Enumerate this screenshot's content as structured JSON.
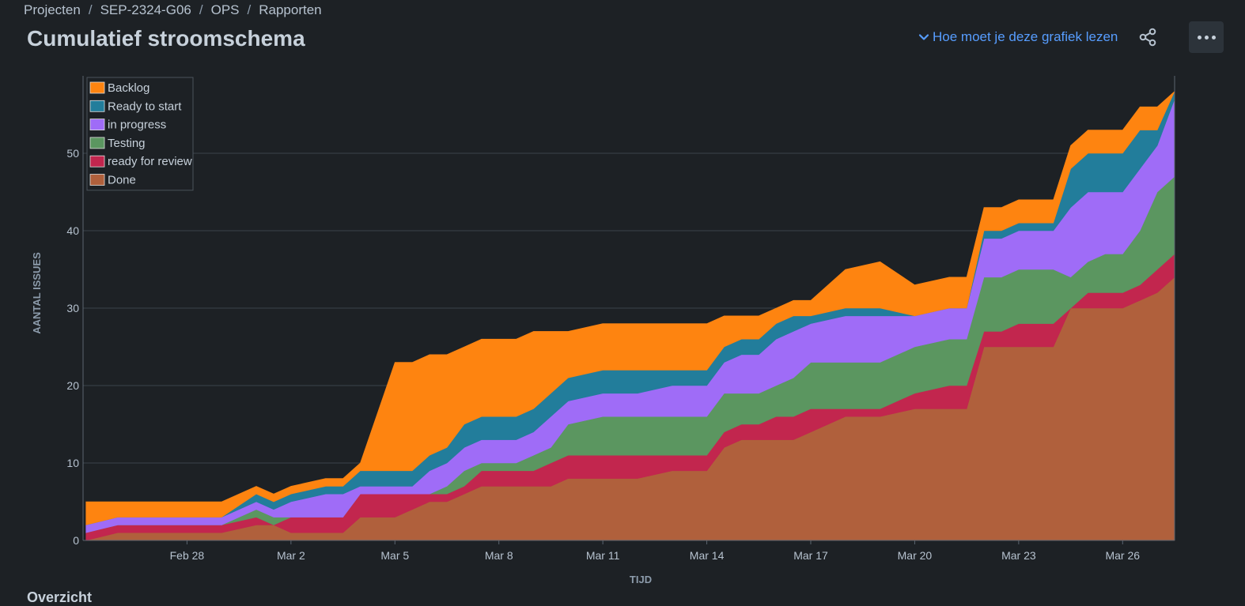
{
  "breadcrumb": [
    "Projecten",
    "SEP-2324-G06",
    "OPS",
    "Rapporten"
  ],
  "page_title": "Cumulatief stroomschema",
  "help_link": "Hoe moet je deze grafiek lezen",
  "section_title": "Overzicht",
  "icons": {
    "help": "chevron-down-icon",
    "share": "share-icon",
    "more": "more-icon"
  },
  "chart_data": {
    "type": "area",
    "stacked": true,
    "title": "",
    "xlabel": "TIJD",
    "ylabel": "AANTAL ISSUES",
    "ylim": [
      0,
      60
    ],
    "yticks": [
      0,
      10,
      20,
      30,
      40,
      50
    ],
    "xlim": [
      "2024-02-25",
      "2024-03-27T12:00"
    ],
    "xticks": [
      "2024-02-28",
      "2024-03-02",
      "2024-03-05",
      "2024-03-08",
      "2024-03-11",
      "2024-03-14",
      "2024-03-17",
      "2024-03-20",
      "2024-03-23",
      "2024-03-26"
    ],
    "xtick_labels": [
      "Feb 28",
      "Mar 2",
      "Mar 5",
      "Mar 8",
      "Mar 11",
      "Mar 14",
      "Mar 17",
      "Mar 20",
      "Mar 23",
      "Mar 26"
    ],
    "grid": true,
    "legend_position": "top-left",
    "x": [
      "2024-02-25T02:00",
      "2024-02-26T00:00",
      "2024-02-27T00:00",
      "2024-02-28T00:00",
      "2024-02-29T00:00",
      "2024-03-01T00:00",
      "2024-03-01T12:00",
      "2024-03-02T00:00",
      "2024-03-03T00:00",
      "2024-03-03T12:00",
      "2024-03-04T00:00",
      "2024-03-05T00:00",
      "2024-03-05T12:00",
      "2024-03-06T00:00",
      "2024-03-06T12:00",
      "2024-03-07T00:00",
      "2024-03-07T12:00",
      "2024-03-08T00:00",
      "2024-03-08T12:00",
      "2024-03-09T00:00",
      "2024-03-09T12:00",
      "2024-03-10T00:00",
      "2024-03-11T00:00",
      "2024-03-12T00:00",
      "2024-03-13T00:00",
      "2024-03-14T00:00",
      "2024-03-14T12:00",
      "2024-03-15T00:00",
      "2024-03-15T12:00",
      "2024-03-16T00:00",
      "2024-03-16T12:00",
      "2024-03-17T00:00",
      "2024-03-18T00:00",
      "2024-03-19T00:00",
      "2024-03-20T00:00",
      "2024-03-21T00:00",
      "2024-03-21T12:00",
      "2024-03-22T00:00",
      "2024-03-22T12:00",
      "2024-03-23T00:00",
      "2024-03-24T00:00",
      "2024-03-24T12:00",
      "2024-03-25T00:00",
      "2024-03-25T12:00",
      "2024-03-26T00:00",
      "2024-03-26T12:00",
      "2024-03-27T00:00",
      "2024-03-27T12:00"
    ],
    "series": [
      {
        "name": "Done",
        "color": "#b0603c",
        "values": [
          0,
          1,
          1,
          1,
          1,
          2,
          2,
          1,
          1,
          1,
          3,
          3,
          4,
          5,
          5,
          6,
          7,
          7,
          7,
          7,
          7,
          8,
          8,
          8,
          9,
          9,
          12,
          13,
          13,
          13,
          13,
          14,
          16,
          16,
          17,
          17,
          17,
          25,
          25,
          25,
          25,
          30,
          30,
          30,
          30,
          31,
          32,
          34
        ]
      },
      {
        "name": "ready for review",
        "color": "#c2264e",
        "values": [
          1,
          1,
          1,
          1,
          1,
          1,
          0,
          2,
          2,
          2,
          3,
          3,
          2,
          1,
          1,
          1,
          2,
          2,
          2,
          2,
          3,
          3,
          3,
          3,
          2,
          2,
          2,
          2,
          2,
          3,
          3,
          3,
          1,
          1,
          2,
          3,
          3,
          2,
          2,
          3,
          3,
          0,
          2,
          2,
          2,
          2,
          3,
          3
        ]
      },
      {
        "name": "Testing",
        "color": "#5b9660",
        "values": [
          0,
          0,
          0,
          0,
          0,
          1,
          1,
          0,
          0,
          0,
          0,
          0,
          0,
          0,
          1,
          2,
          1,
          1,
          1,
          2,
          2,
          4,
          5,
          5,
          5,
          5,
          5,
          4,
          4,
          4,
          5,
          6,
          6,
          6,
          6,
          6,
          6,
          7,
          7,
          7,
          7,
          4,
          4,
          5,
          5,
          7,
          10,
          10
        ]
      },
      {
        "name": "in progress",
        "color": "#9f6cf7",
        "values": [
          1,
          1,
          1,
          1,
          1,
          1,
          1,
          2,
          3,
          3,
          1,
          1,
          1,
          3,
          3,
          3,
          3,
          3,
          3,
          3,
          4,
          3,
          3,
          3,
          4,
          4,
          4,
          5,
          5,
          6,
          6,
          5,
          6,
          6,
          4,
          4,
          4,
          5,
          5,
          5,
          5,
          9,
          9,
          8,
          8,
          8,
          6,
          10
        ]
      },
      {
        "name": "Ready to start",
        "color": "#227d9b",
        "values": [
          0,
          0,
          0,
          0,
          0,
          1,
          1,
          1,
          1,
          1,
          2,
          2,
          2,
          2,
          2,
          3,
          3,
          3,
          3,
          3,
          3,
          3,
          3,
          3,
          2,
          2,
          2,
          2,
          2,
          2,
          2,
          1,
          1,
          1,
          0,
          0,
          0,
          1,
          1,
          1,
          1,
          5,
          5,
          5,
          5,
          5,
          2,
          1
        ]
      },
      {
        "name": "Backlog",
        "color": "#fe8410",
        "values": [
          3,
          2,
          2,
          2,
          2,
          1,
          1,
          1,
          1,
          1,
          1,
          14,
          14,
          13,
          12,
          10,
          10,
          10,
          10,
          10,
          8,
          6,
          6,
          6,
          6,
          6,
          4,
          3,
          3,
          2,
          2,
          2,
          5,
          6,
          4,
          4,
          4,
          3,
          3,
          3,
          3,
          3,
          3,
          3,
          3,
          3,
          3,
          0
        ]
      }
    ]
  }
}
